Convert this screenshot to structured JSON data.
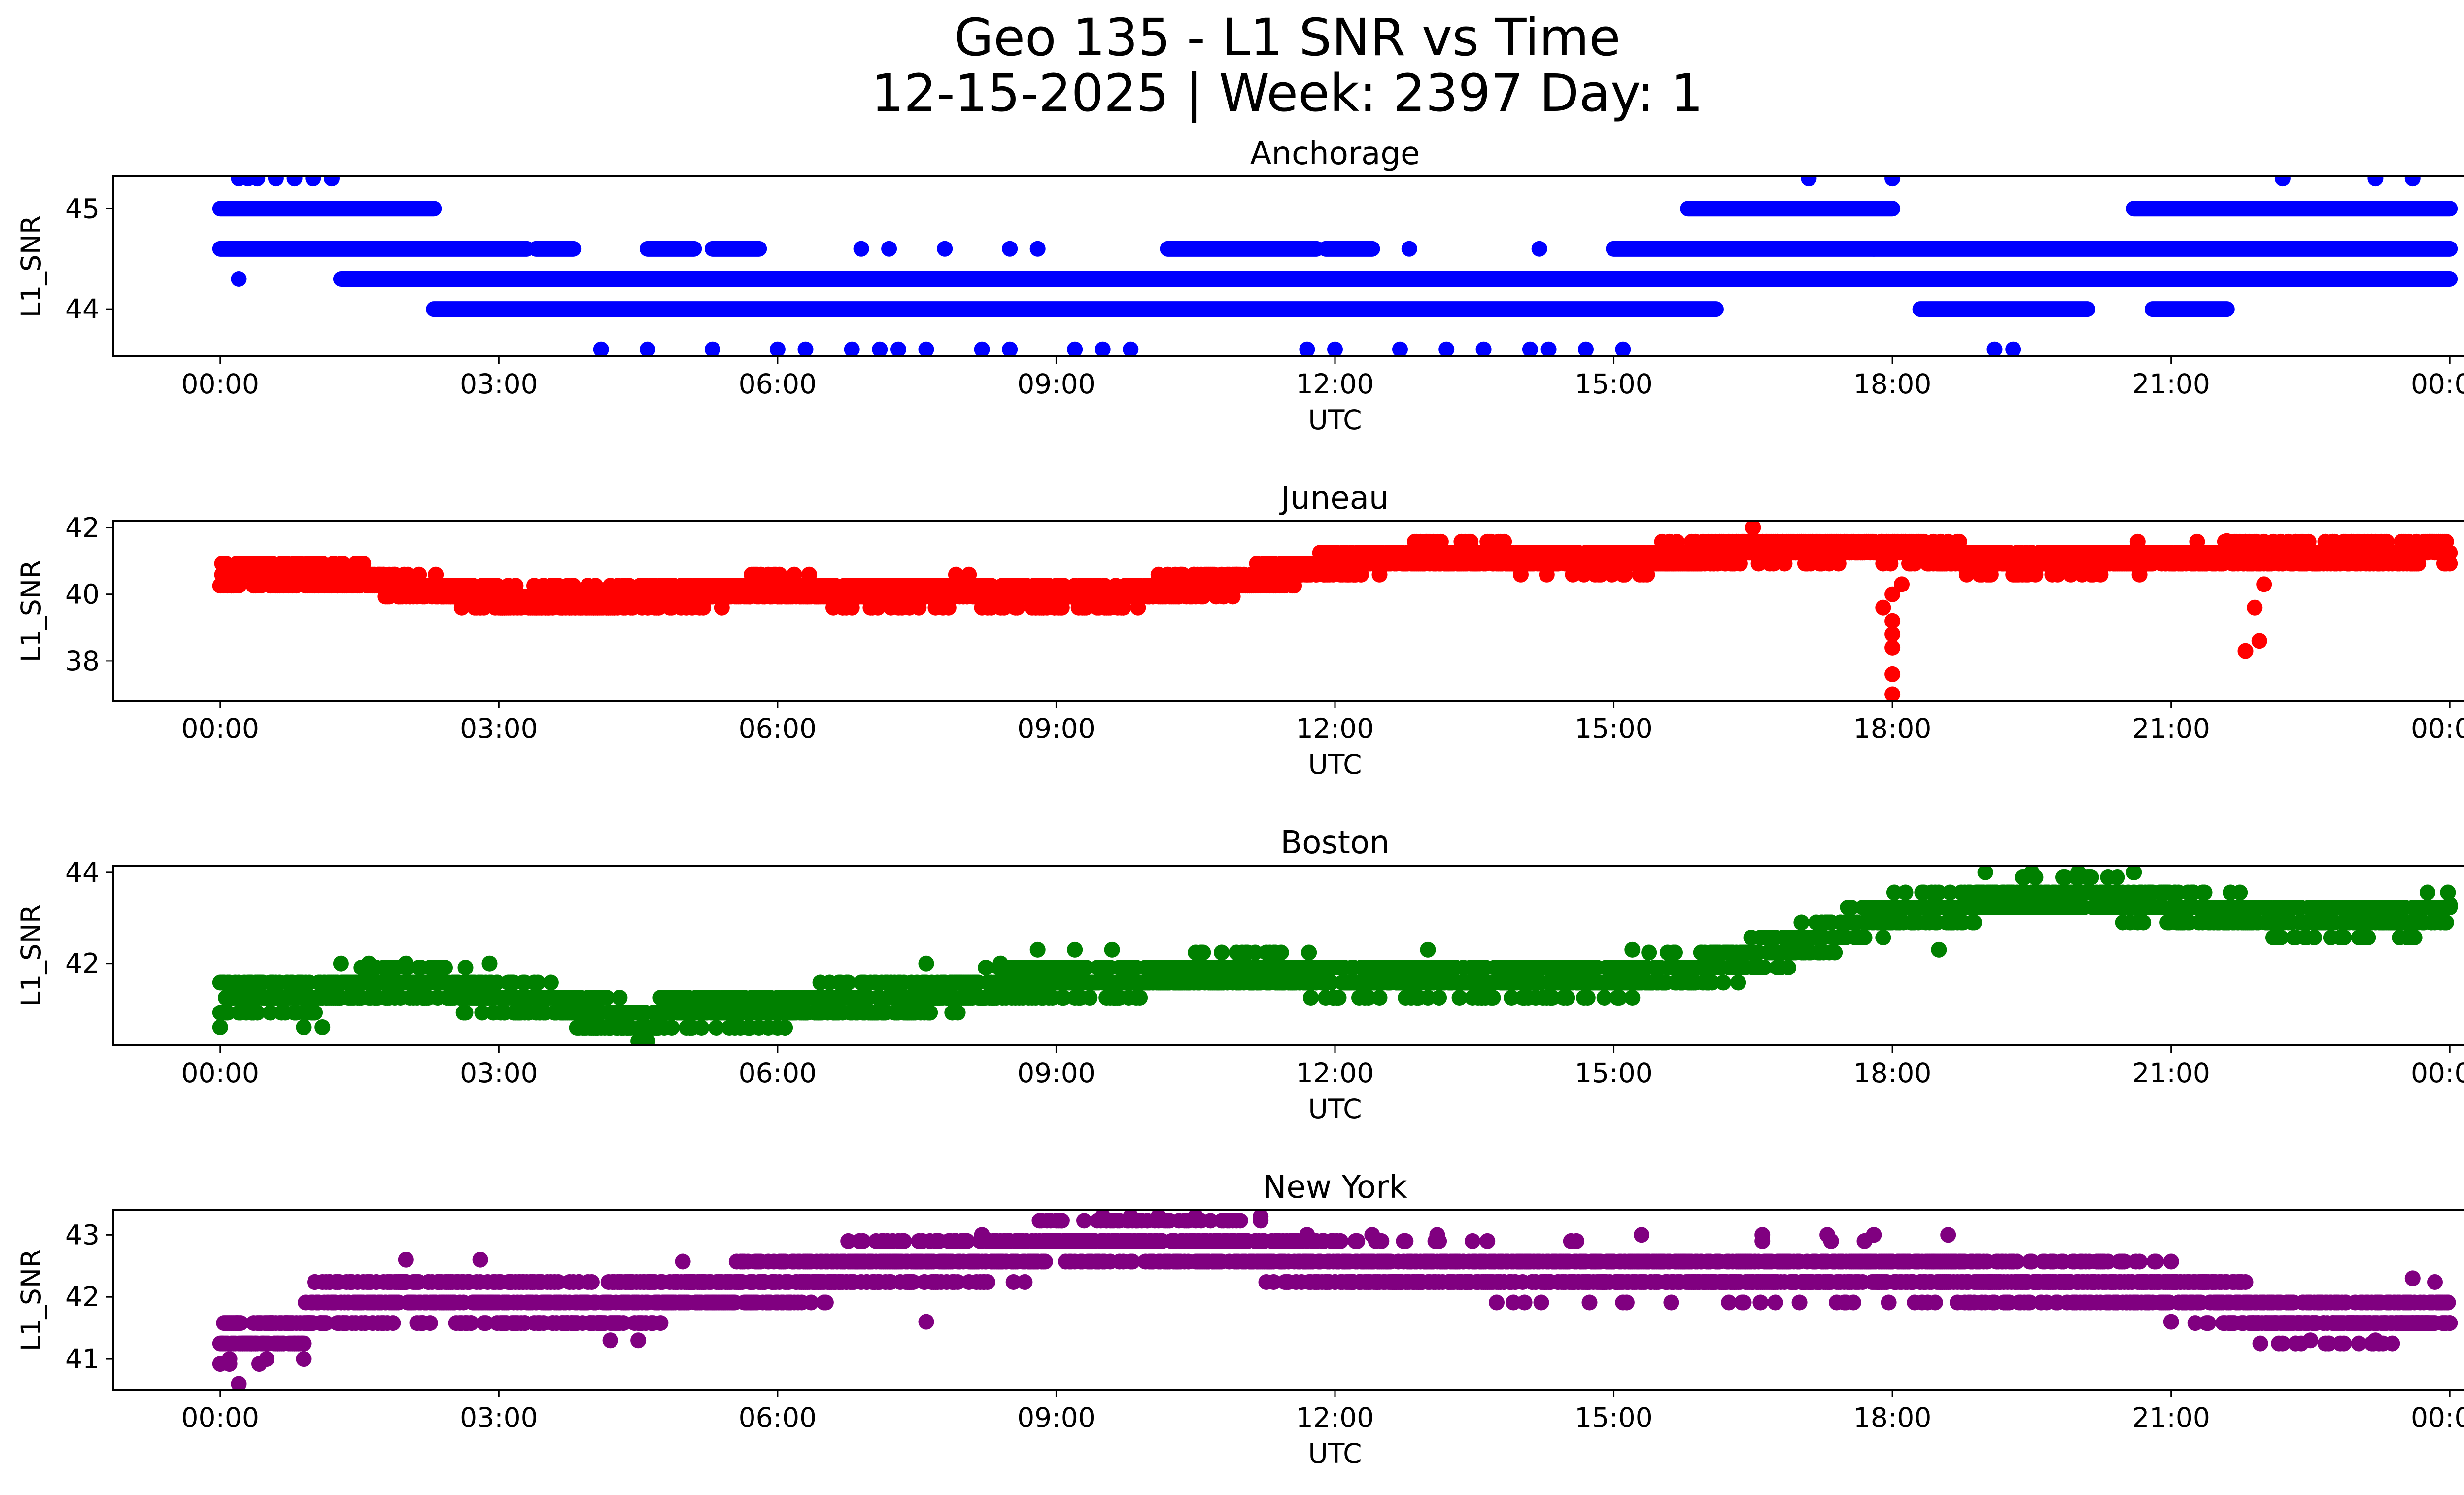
{
  "figure": {
    "title_line1": "Geo 135 - L1 SNR vs Time",
    "title_line2": "12-15-2025 | Week: 2397 Day: 1"
  },
  "chart_data": [
    {
      "type": "scatter",
      "title": "Anchorage",
      "xlabel": "UTC",
      "ylabel": "L1_SNR",
      "color": "#0000ff",
      "xlim_hours": [
        -1.15,
        25.15
      ],
      "ylim": [
        43.53,
        45.32
      ],
      "x_ticks": [
        0,
        3,
        6,
        9,
        12,
        15,
        18,
        21,
        24
      ],
      "x_tick_labels": [
        "00:00",
        "03:00",
        "06:00",
        "09:00",
        "12:00",
        "15:00",
        "18:00",
        "21:00",
        "00:00"
      ],
      "y_ticks": [
        44,
        45
      ],
      "y_tick_labels": [
        "44",
        "45"
      ],
      "levels": [
        43.6,
        44.0,
        44.3,
        44.6,
        45.0,
        45.3
      ],
      "bands": [
        {
          "y": 44.6,
          "ranges": [
            [
              0.0,
              3.3
            ],
            [
              3.4,
              3.8
            ],
            [
              4.6,
              5.1
            ],
            [
              5.3,
              5.8
            ],
            [
              10.2,
              11.8
            ],
            [
              11.9,
              12.4
            ],
            [
              15.0,
              24.0
            ]
          ]
        },
        {
          "y": 44.3,
          "ranges": [
            [
              1.3,
              24.0
            ]
          ]
        },
        {
          "y": 44.0,
          "ranges": [
            [
              2.3,
              16.1
            ],
            [
              18.3,
              20.1
            ],
            [
              20.8,
              21.6
            ]
          ]
        },
        {
          "y": 45.0,
          "ranges": [
            [
              0.0,
              2.3
            ],
            [
              15.8,
              18.0
            ],
            [
              20.6,
              24.0
            ]
          ]
        }
      ],
      "points": [
        [
          0.2,
          44.3
        ],
        [
          0.2,
          45.3
        ],
        [
          0.3,
          45.3
        ],
        [
          0.4,
          45.3
        ],
        [
          0.6,
          45.3
        ],
        [
          0.8,
          45.3
        ],
        [
          1.0,
          45.3
        ],
        [
          1.2,
          45.3
        ],
        [
          17.1,
          45.3
        ],
        [
          18.0,
          45.3
        ],
        [
          22.2,
          45.3
        ],
        [
          23.2,
          45.3
        ],
        [
          23.6,
          45.3
        ],
        [
          4.1,
          43.6
        ],
        [
          4.6,
          43.6
        ],
        [
          5.3,
          43.6
        ],
        [
          6.0,
          43.6
        ],
        [
          6.3,
          43.6
        ],
        [
          6.8,
          43.6
        ],
        [
          7.1,
          43.6
        ],
        [
          7.3,
          43.6
        ],
        [
          7.6,
          43.6
        ],
        [
          8.2,
          43.6
        ],
        [
          8.5,
          43.6
        ],
        [
          9.2,
          43.6
        ],
        [
          9.5,
          43.6
        ],
        [
          9.8,
          43.6
        ],
        [
          11.7,
          43.6
        ],
        [
          12.0,
          43.6
        ],
        [
          12.7,
          43.6
        ],
        [
          13.2,
          43.6
        ],
        [
          13.6,
          43.6
        ],
        [
          14.1,
          43.6
        ],
        [
          14.3,
          43.6
        ],
        [
          14.7,
          43.6
        ],
        [
          15.1,
          43.6
        ],
        [
          19.1,
          43.6
        ],
        [
          19.3,
          43.6
        ],
        [
          6.9,
          44.6
        ],
        [
          7.2,
          44.6
        ],
        [
          7.8,
          44.6
        ],
        [
          8.5,
          44.6
        ],
        [
          8.8,
          44.6
        ],
        [
          12.8,
          44.6
        ],
        [
          14.2,
          44.6
        ],
        [
          17.8,
          44.6
        ],
        [
          23.7,
          44.3
        ]
      ]
    },
    {
      "type": "scatter",
      "title": "Juneau",
      "xlabel": "UTC",
      "ylabel": "L1_SNR",
      "color": "#ff0000",
      "xlim_hours": [
        -1.15,
        25.15
      ],
      "ylim": [
        36.8,
        42.2
      ],
      "x_ticks": [
        0,
        3,
        6,
        9,
        12,
        15,
        18,
        21,
        24
      ],
      "x_tick_labels": [
        "00:00",
        "03:00",
        "06:00",
        "09:00",
        "12:00",
        "15:00",
        "18:00",
        "21:00",
        "00:00"
      ],
      "y_ticks": [
        38,
        40,
        42
      ],
      "y_tick_labels": [
        "38",
        "40",
        "42"
      ],
      "trend": [
        [
          0.0,
          40.7
        ],
        [
          1.5,
          40.5
        ],
        [
          2.2,
          40.2
        ],
        [
          3.0,
          39.9
        ],
        [
          4.0,
          39.8
        ],
        [
          5.0,
          40.0
        ],
        [
          6.0,
          40.2
        ],
        [
          7.0,
          40.0
        ],
        [
          8.0,
          40.1
        ],
        [
          9.0,
          39.9
        ],
        [
          10.0,
          40.1
        ],
        [
          11.0,
          40.4
        ],
        [
          12.0,
          40.9
        ],
        [
          13.0,
          41.2
        ],
        [
          15.0,
          41.0
        ],
        [
          16.5,
          41.3
        ],
        [
          18.0,
          41.4
        ],
        [
          19.0,
          41.0
        ],
        [
          21.0,
          41.1
        ],
        [
          22.5,
          41.2
        ],
        [
          24.0,
          41.3
        ]
      ],
      "spread": 0.35,
      "points": [
        [
          16.5,
          42.0
        ],
        [
          17.9,
          39.6
        ],
        [
          18.0,
          40.0
        ],
        [
          18.0,
          39.2
        ],
        [
          18.0,
          38.8
        ],
        [
          18.0,
          38.4
        ],
        [
          18.0,
          37.6
        ],
        [
          18.0,
          37.0
        ],
        [
          18.1,
          40.3
        ],
        [
          21.8,
          38.3
        ],
        [
          21.9,
          39.6
        ],
        [
          21.95,
          38.6
        ],
        [
          22.0,
          40.3
        ],
        [
          21.6,
          41.6
        ]
      ]
    },
    {
      "type": "scatter",
      "title": "Boston",
      "xlabel": "UTC",
      "ylabel": "L1_SNR",
      "color": "#008000",
      "xlim_hours": [
        -1.15,
        25.15
      ],
      "ylim": [
        40.2,
        44.15
      ],
      "x_ticks": [
        0,
        3,
        6,
        9,
        12,
        15,
        18,
        21,
        24
      ],
      "x_tick_labels": [
        "00:00",
        "03:00",
        "06:00",
        "09:00",
        "12:00",
        "15:00",
        "18:00",
        "21:00",
        "00:00"
      ],
      "y_ticks": [
        42,
        44
      ],
      "y_tick_labels": [
        "42",
        "44"
      ],
      "trend": [
        [
          0.0,
          41.3
        ],
        [
          1.0,
          41.3
        ],
        [
          2.0,
          41.6
        ],
        [
          3.0,
          41.3
        ],
        [
          3.9,
          41.0
        ],
        [
          4.5,
          40.7
        ],
        [
          5.0,
          41.0
        ],
        [
          6.0,
          41.0
        ],
        [
          7.0,
          41.2
        ],
        [
          8.0,
          41.4
        ],
        [
          9.0,
          41.7
        ],
        [
          10.0,
          41.7
        ],
        [
          11.0,
          41.9
        ],
        [
          12.0,
          41.7
        ],
        [
          13.0,
          41.7
        ],
        [
          14.0,
          41.6
        ],
        [
          15.0,
          41.7
        ],
        [
          16.0,
          41.9
        ],
        [
          17.0,
          42.4
        ],
        [
          18.0,
          43.1
        ],
        [
          19.0,
          43.4
        ],
        [
          20.0,
          43.5
        ],
        [
          21.0,
          43.3
        ],
        [
          22.0,
          43.0
        ],
        [
          23.0,
          43.0
        ],
        [
          24.0,
          43.1
        ]
      ],
      "spread": 0.35,
      "points": [
        [
          0.0,
          40.6
        ],
        [
          0.9,
          40.6
        ],
        [
          1.1,
          40.6
        ],
        [
          1.3,
          42.0
        ],
        [
          1.6,
          42.0
        ],
        [
          2.0,
          42.0
        ],
        [
          2.9,
          42.0
        ],
        [
          4.5,
          40.3
        ],
        [
          4.6,
          40.3
        ],
        [
          8.4,
          42.0
        ],
        [
          8.8,
          42.3
        ],
        [
          9.2,
          42.3
        ],
        [
          9.6,
          42.3
        ],
        [
          7.6,
          42.0
        ],
        [
          13.0,
          42.3
        ],
        [
          15.2,
          42.3
        ],
        [
          18.5,
          42.3
        ],
        [
          19.0,
          44.0
        ],
        [
          19.5,
          44.0
        ],
        [
          20.0,
          44.0
        ],
        [
          20.6,
          44.0
        ],
        [
          21.0,
          43.0
        ],
        [
          24.0,
          43.3
        ]
      ]
    },
    {
      "type": "scatter",
      "title": "New York",
      "xlabel": "UTC",
      "ylabel": "L1_SNR",
      "color": "#800080",
      "xlim_hours": [
        -1.15,
        25.15
      ],
      "ylim": [
        40.5,
        43.4
      ],
      "x_ticks": [
        0,
        3,
        6,
        9,
        12,
        15,
        18,
        21,
        24
      ],
      "x_tick_labels": [
        "00:00",
        "03:00",
        "06:00",
        "09:00",
        "12:00",
        "15:00",
        "18:00",
        "21:00",
        "00:00"
      ],
      "y_ticks": [
        41,
        42,
        43
      ],
      "y_tick_labels": [
        "41",
        "42",
        "43"
      ],
      "trend": [
        [
          0.0,
          41.3
        ],
        [
          0.8,
          41.4
        ],
        [
          1.0,
          41.8
        ],
        [
          2.0,
          42.0
        ],
        [
          3.0,
          42.0
        ],
        [
          4.0,
          41.8
        ],
        [
          5.0,
          42.1
        ],
        [
          6.0,
          42.2
        ],
        [
          7.0,
          42.5
        ],
        [
          8.0,
          42.6
        ],
        [
          9.0,
          42.8
        ],
        [
          10.0,
          42.9
        ],
        [
          11.0,
          42.8
        ],
        [
          12.0,
          42.5
        ],
        [
          14.0,
          42.4
        ],
        [
          16.0,
          42.4
        ],
        [
          18.0,
          42.4
        ],
        [
          20.0,
          42.2
        ],
        [
          21.0,
          42.1
        ],
        [
          21.5,
          42.0
        ],
        [
          22.0,
          41.7
        ],
        [
          23.0,
          41.6
        ],
        [
          24.0,
          41.8
        ]
      ],
      "spread": 0.35,
      "points": [
        [
          0.2,
          40.6
        ],
        [
          0.1,
          41.0
        ],
        [
          0.5,
          41.0
        ],
        [
          0.9,
          41.0
        ],
        [
          2.0,
          42.6
        ],
        [
          2.8,
          42.6
        ],
        [
          4.2,
          41.3
        ],
        [
          4.5,
          41.3
        ],
        [
          7.6,
          41.6
        ],
        [
          8.2,
          43.0
        ],
        [
          9.5,
          43.3
        ],
        [
          9.8,
          43.3
        ],
        [
          10.1,
          43.3
        ],
        [
          10.5,
          43.3
        ],
        [
          11.2,
          43.3
        ],
        [
          11.7,
          43.0
        ],
        [
          12.4,
          43.0
        ],
        [
          13.1,
          43.0
        ],
        [
          15.3,
          43.0
        ],
        [
          16.6,
          43.0
        ],
        [
          17.3,
          43.0
        ],
        [
          17.8,
          43.0
        ],
        [
          18.6,
          43.0
        ],
        [
          23.6,
          42.3
        ],
        [
          21.0,
          41.6
        ],
        [
          22.5,
          41.3
        ],
        [
          23.2,
          41.3
        ]
      ]
    }
  ]
}
